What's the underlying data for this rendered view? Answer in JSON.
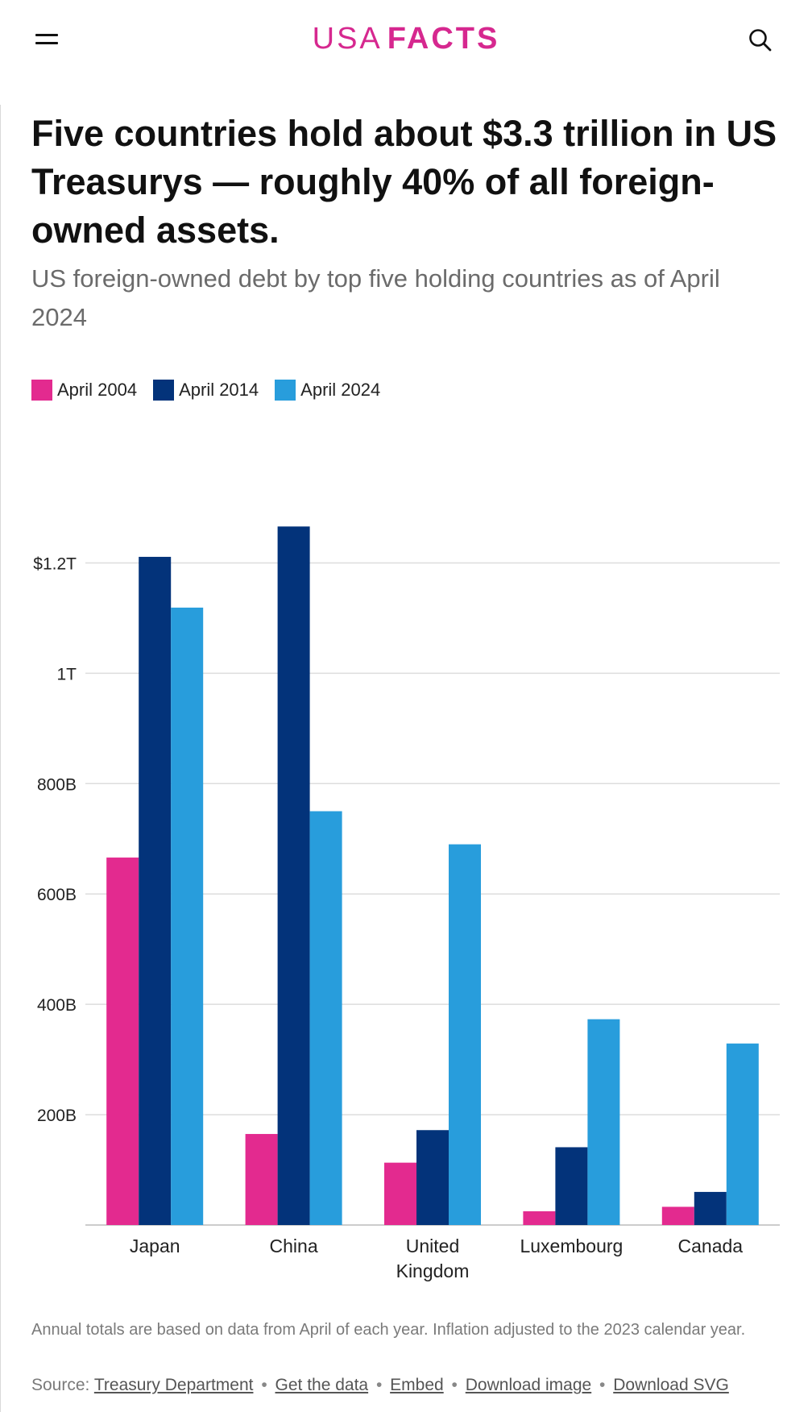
{
  "header": {
    "logo_usa": "USA",
    "logo_facts": "FACTS",
    "menu_icon": "hamburger-menu-icon",
    "search_icon": "search-icon"
  },
  "title": "Five countries hold about $3.3 trillion in US Treasurys — roughly 40% of all foreign-owned assets.",
  "subtitle": "US foreign-owned debt by top five holding countries as of April 2024",
  "colors": {
    "april_2004": "#e32a8f",
    "april_2014": "#03337a",
    "april_2024": "#289ddc",
    "brand": "#d6288f",
    "grid": "#dddddd"
  },
  "chart_data": {
    "type": "bar",
    "title": "Five countries hold about $3.3 trillion in US Treasurys — roughly 40% of all foreign-owned assets.",
    "subtitle": "US foreign-owned debt by top five holding countries as of April 2024",
    "categories": [
      "Japan",
      "China",
      "United Kingdom",
      "Luxembourg",
      "Canada"
    ],
    "category_label_lines": [
      [
        "Japan"
      ],
      [
        "China"
      ],
      [
        "United",
        "Kingdom"
      ],
      [
        "Luxembourg"
      ],
      [
        "Canada"
      ]
    ],
    "series": [
      {
        "name": "April 2004",
        "color": "#e32a8f",
        "values": [
          666,
          165,
          113,
          25,
          33
        ]
      },
      {
        "name": "April 2014",
        "color": "#03337a",
        "values": [
          1211,
          1266,
          172,
          141,
          60
        ]
      },
      {
        "name": "April 2024",
        "color": "#289ddc",
        "values": [
          1119,
          750,
          690,
          373,
          329
        ]
      }
    ],
    "units": "billions of US dollars",
    "xlabel": "",
    "ylabel": "",
    "ylim": [
      0,
      1300
    ],
    "yticks": [
      {
        "value": 200,
        "label": "200B"
      },
      {
        "value": 400,
        "label": "400B"
      },
      {
        "value": 600,
        "label": "600B"
      },
      {
        "value": 800,
        "label": "800B"
      },
      {
        "value": 1000,
        "label": "1T"
      },
      {
        "value": 1200,
        "label": "$1.2T"
      }
    ],
    "grid": true,
    "legend": "top-left"
  },
  "footer": {
    "note": "Annual totals are based on data from April of each year. Inflation adjusted to the 2023 calendar year.",
    "source_prefix": "Source:",
    "links": {
      "source": "Treasury Department",
      "data": "Get the data",
      "embed": "Embed",
      "image": "Download image",
      "svg": "Download SVG"
    },
    "separator": "•"
  }
}
